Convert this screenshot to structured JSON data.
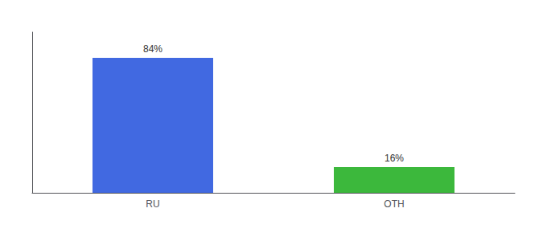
{
  "chart_data": {
    "type": "bar",
    "categories": [
      "RU",
      "OTH"
    ],
    "values": [
      84,
      16
    ],
    "value_labels": [
      "84%",
      "16%"
    ],
    "colors": [
      "#4169e1",
      "#3cb83c"
    ],
    "ylim": [
      0,
      100
    ],
    "data_labels": true,
    "tick_labels": "x",
    "grid": false
  }
}
